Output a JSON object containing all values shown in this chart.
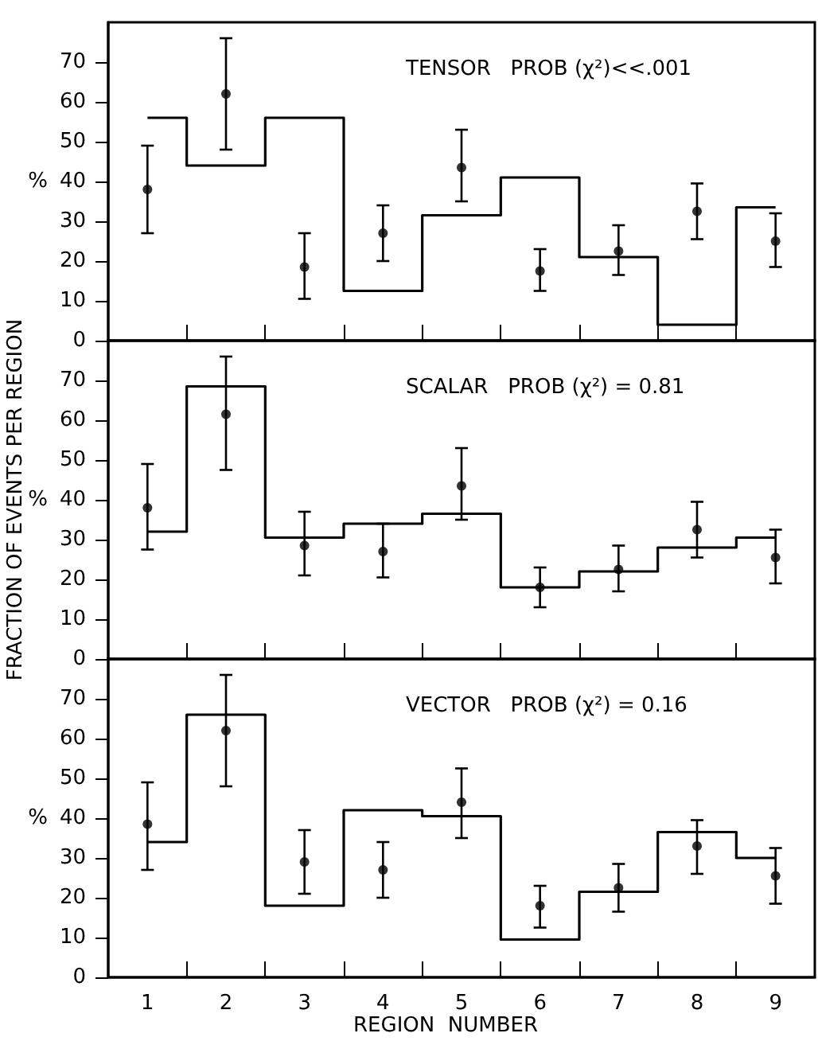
{
  "chart_data": [
    {
      "type": "step",
      "title": "TENSOR   PROB (χ²)<<.001",
      "ylabel": "%",
      "x": [
        1,
        2,
        3,
        4,
        5,
        6,
        7,
        8,
        9
      ],
      "xlim": [
        0.5,
        9.5
      ],
      "xticks": [
        1,
        {
          "value": 1.5,
          "label": null
        },
        2,
        {
          "value": 2.5,
          "label": null
        },
        3,
        {
          "value": 3.5,
          "label": null
        },
        4,
        {
          "value": 4.5,
          "label": null
        },
        5,
        {
          "value": 5.5,
          "label": null
        },
        6,
        {
          "value": 6.5,
          "label": null
        },
        7,
        {
          "value": 7.5,
          "label": null
        },
        8,
        {
          "value": 8.5,
          "label": null
        },
        9
      ],
      "ylim": [
        0,
        80
      ],
      "yticks": [
        0,
        10,
        20,
        30,
        40,
        50,
        60,
        70
      ],
      "tick_labels": "y",
      "grid": false,
      "series": [
        {
          "color": "#000000",
          "marker": "none",
          "values": [
            56,
            44,
            56,
            12.5,
            31.5,
            41,
            21,
            4,
            33.5
          ]
        },
        {
          "type": "scatter",
          "color": "#000000",
          "marker": "circle",
          "values": [
            38,
            62,
            18.5,
            27,
            43.5,
            17.5,
            22.5,
            32.5,
            25
          ],
          "errors": [
            [
              27,
              49
            ],
            [
              48,
              76
            ],
            [
              10.5,
              27
            ],
            [
              20,
              34
            ],
            [
              35,
              53
            ],
            [
              12.5,
              23
            ],
            [
              16.5,
              29
            ],
            [
              25.5,
              39.5
            ],
            [
              18.5,
              32
            ]
          ]
        }
      ]
    },
    {
      "type": "step",
      "title": "SCALAR   PROB (χ²) = 0.81",
      "ylabel": "%",
      "annotations": [
        "FRACTION OF EVENTS PER REGION"
      ],
      "x": [
        1,
        2,
        3,
        4,
        5,
        6,
        7,
        8,
        9
      ],
      "xlim": [
        0.5,
        9.5
      ],
      "xticks": [
        1,
        {
          "value": 1.5,
          "label": null
        },
        2,
        {
          "value": 2.5,
          "label": null
        },
        3,
        {
          "value": 3.5,
          "label": null
        },
        4,
        {
          "value": 4.5,
          "label": null
        },
        5,
        {
          "value": 5.5,
          "label": null
        },
        6,
        {
          "value": 6.5,
          "label": null
        },
        7,
        {
          "value": 7.5,
          "label": null
        },
        8,
        {
          "value": 8.5,
          "label": null
        },
        9
      ],
      "ylim": [
        0,
        80
      ],
      "yticks": [
        0,
        10,
        20,
        30,
        40,
        50,
        60,
        70
      ],
      "tick_labels": "y",
      "grid": false,
      "series": [
        {
          "color": "#000000",
          "marker": "none",
          "values": [
            32,
            68.5,
            30.5,
            34,
            36.5,
            18,
            22,
            28,
            30.5
          ]
        },
        {
          "type": "scatter",
          "color": "#000000",
          "marker": "circle",
          "values": [
            38,
            61.5,
            28.5,
            27,
            43.5,
            18,
            22.5,
            32.5,
            25.5
          ],
          "errors": [
            [
              27.5,
              49
            ],
            [
              47.5,
              76
            ],
            [
              21,
              37
            ],
            [
              20.5,
              34
            ],
            [
              35,
              53
            ],
            [
              13,
              23
            ],
            [
              17,
              28.5
            ],
            [
              25.5,
              39.5
            ],
            [
              19,
              32.5
            ]
          ]
        }
      ]
    },
    {
      "type": "step",
      "title": "VECTOR   PROB (χ²) = 0.16",
      "ylabel": "%",
      "xlabel": "REGION  NUMBER",
      "x": [
        1,
        2,
        3,
        4,
        5,
        6,
        7,
        8,
        9
      ],
      "xlim": [
        0.5,
        9.5
      ],
      "xticks": [
        1,
        {
          "value": 1.5,
          "label": null
        },
        2,
        {
          "value": 2.5,
          "label": null
        },
        3,
        {
          "value": 3.5,
          "label": null
        },
        4,
        {
          "value": 4.5,
          "label": null
        },
        5,
        {
          "value": 5.5,
          "label": null
        },
        6,
        {
          "value": 6.5,
          "label": null
        },
        7,
        {
          "value": 7.5,
          "label": null
        },
        8,
        {
          "value": 8.5,
          "label": null
        },
        9
      ],
      "ylim": [
        0,
        80
      ],
      "yticks": [
        0,
        10,
        20,
        30,
        40,
        50,
        60,
        70
      ],
      "grid": false,
      "series": [
        {
          "color": "#000000",
          "marker": "none",
          "values": [
            34,
            66,
            18,
            42,
            40.5,
            9.5,
            21.5,
            36.5,
            30
          ]
        },
        {
          "type": "scatter",
          "color": "#000000",
          "marker": "circle",
          "values": [
            38.5,
            62,
            29,
            27,
            44,
            18,
            22.5,
            33,
            25.5
          ],
          "errors": [
            [
              27,
              49
            ],
            [
              48,
              76
            ],
            [
              21,
              37
            ],
            [
              20,
              34
            ],
            [
              35,
              52.5
            ],
            [
              12.5,
              23
            ],
            [
              16.5,
              28.5
            ],
            [
              26,
              39.5
            ],
            [
              18.5,
              32.5
            ]
          ]
        }
      ]
    }
  ]
}
